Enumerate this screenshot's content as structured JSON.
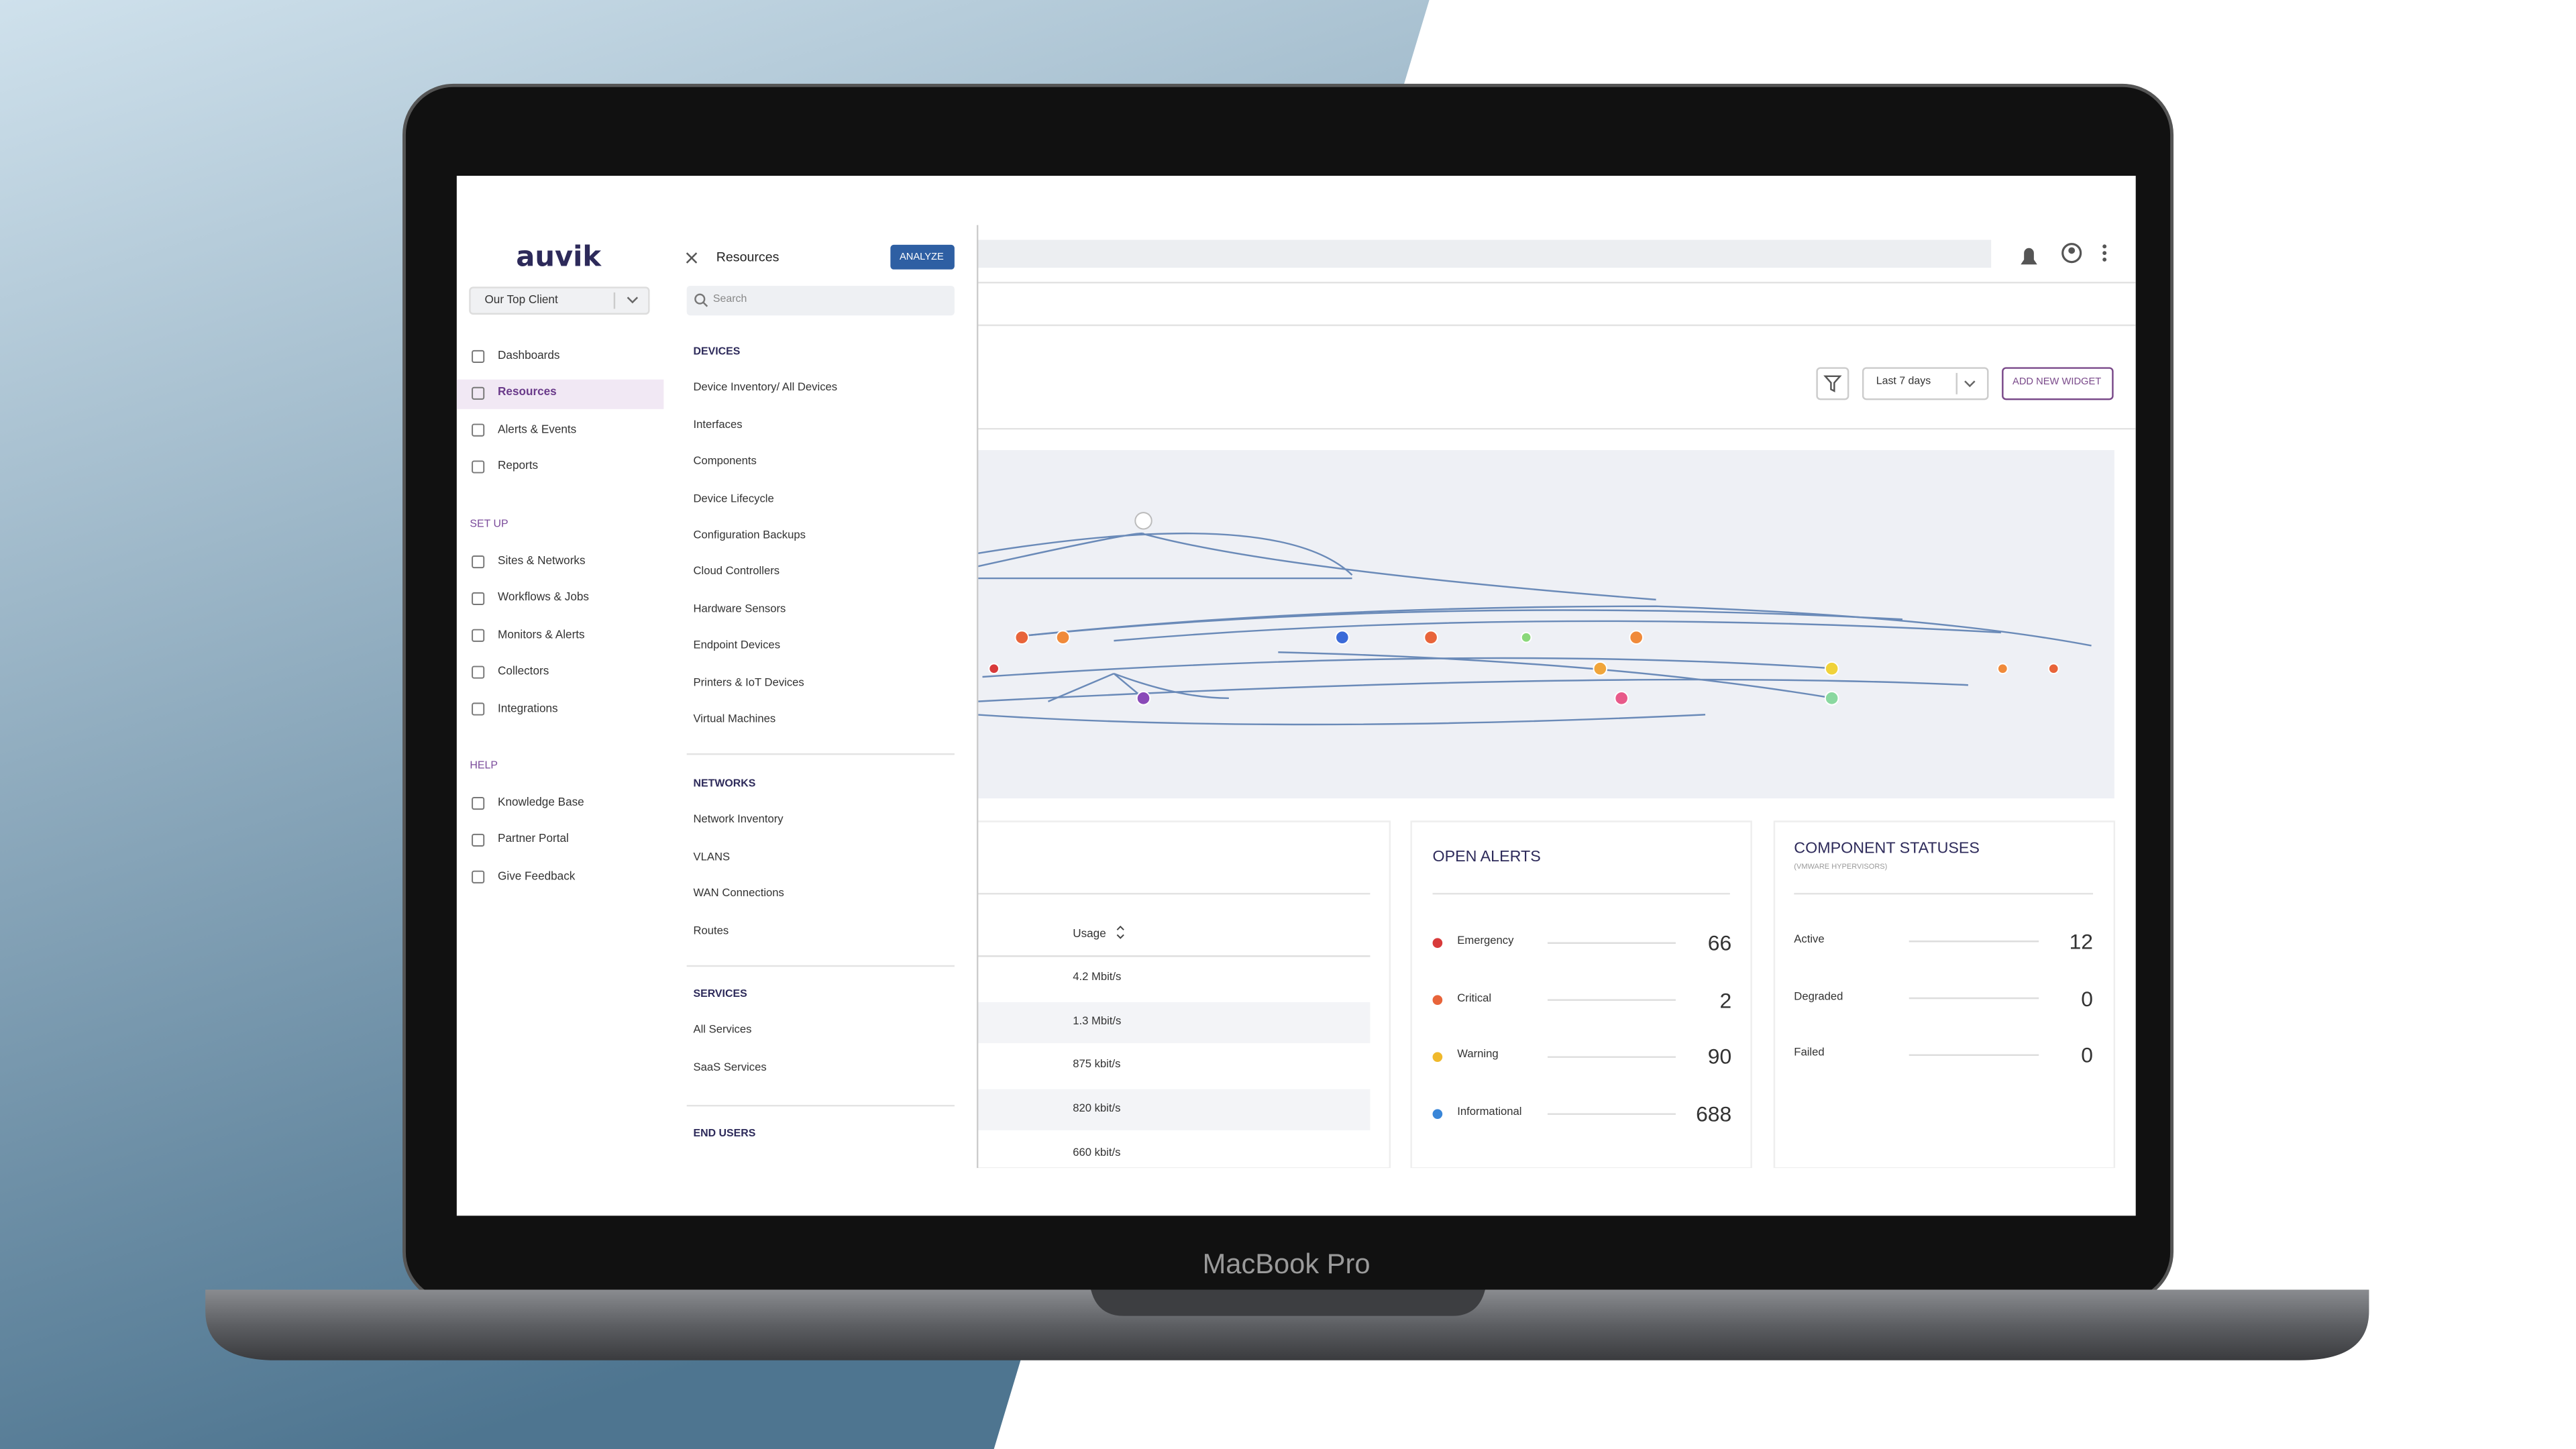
{
  "laptop_label": "MacBook Pro",
  "sidebar": {
    "logo": "auvik",
    "client": "Our Top Client",
    "nav": [
      "Dashboards",
      "Resources",
      "Alerts & Events",
      "Reports"
    ],
    "setup": {
      "title": "SET UP",
      "items": [
        "Sites & Networks",
        "Workflows & Jobs",
        "Monitors & Alerts",
        "Collectors",
        "Integrations"
      ]
    },
    "help": {
      "title": "HELP",
      "items": [
        "Knowledge Base",
        "Partner Portal",
        "Give Feedback"
      ]
    }
  },
  "resources": {
    "title": "Resources",
    "button": "ANALYZE",
    "search": "Search",
    "sections": [
      {
        "title": "DEVICES",
        "items": [
          "Device Inventory/ All Devices",
          "Interfaces",
          "Components",
          "Device Lifecycle",
          "Configuration Backups",
          "Cloud Controllers",
          "Hardware Sensors",
          "Endpoint Devices",
          "Printers & IoT Devices",
          "Virtual Machines"
        ]
      },
      {
        "title": "NETWORKS",
        "items": [
          "Network Inventory",
          "VLANS",
          "WAN Connections",
          "Routes"
        ]
      },
      {
        "title": "SERVICES",
        "items": [
          "All Services",
          "SaaS Services"
        ]
      },
      {
        "title": "END USERS",
        "items": []
      }
    ]
  },
  "toolbar": {
    "range": "Last 7 days",
    "button": "ADD NEW WIDGET"
  },
  "usage_table": {
    "header": "Usage",
    "rows": [
      "4.2 Mbit/s",
      "1.3 Mbit/s",
      "875 kbit/s",
      "820 kbit/s",
      "660 kbit/s"
    ]
  },
  "open_alerts": {
    "title": "OPEN ALERTS",
    "rows": [
      {
        "label": "Emergency",
        "count": "66",
        "color": "#d83a3a"
      },
      {
        "label": "Critical",
        "count": "2",
        "color": "#e8643a"
      },
      {
        "label": "Warning",
        "count": "90",
        "color": "#f0b92c"
      },
      {
        "label": "Informational",
        "count": "688",
        "color": "#3a86d8"
      }
    ]
  },
  "component_statuses": {
    "title": "COMPONENT STATUSES",
    "subtitle": "(VMWARE HYPERVISORS)",
    "rows": [
      {
        "label": "Active",
        "count": "12"
      },
      {
        "label": "Degraded",
        "count": "0"
      },
      {
        "label": "Failed",
        "count": "0"
      }
    ]
  }
}
